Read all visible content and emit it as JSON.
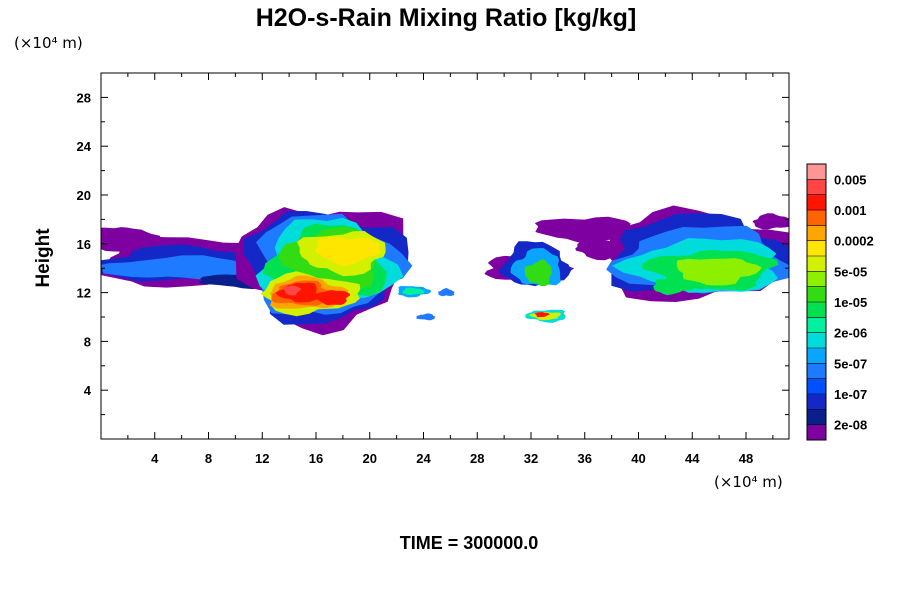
{
  "chart_data": {
    "type": "heatmap",
    "title": "H2O-s-Rain Mixing Ratio [kg/kg]",
    "ylabel": "Height",
    "x_unit": "(×10⁴ m)",
    "y_unit": "(×10⁴ m)",
    "x_ticks": [
      "4",
      "8",
      "12",
      "16",
      "20",
      "24",
      "28",
      "32",
      "36",
      "40",
      "44",
      "48"
    ],
    "y_ticks": [
      "4",
      "8",
      "12",
      "16",
      "20",
      "24",
      "28"
    ],
    "x_tick_values": [
      4,
      8,
      12,
      16,
      20,
      24,
      28,
      32,
      36,
      40,
      44,
      48
    ],
    "y_tick_values": [
      4,
      8,
      12,
      16,
      20,
      24,
      28
    ],
    "xlim": [
      0,
      51.2
    ],
    "ylim": [
      0,
      30
    ],
    "colorbar": {
      "colors": [
        "#7f00a0",
        "#0a1f8c",
        "#1428c8",
        "#0050ff",
        "#1e7aff",
        "#0aa5ff",
        "#00dcdc",
        "#00f0a0",
        "#00e050",
        "#32dc14",
        "#8cf000",
        "#d2f000",
        "#ffe600",
        "#ffa500",
        "#ff6400",
        "#ff1400",
        "#ff4646",
        "#ff9696"
      ],
      "labels": [
        "2e-08",
        "1e-07",
        "5e-07",
        "2e-06",
        "1e-05",
        "5e-05",
        "0.0002",
        "0.001",
        "0.005"
      ]
    },
    "annotation": "TIME = 300000.0"
  }
}
